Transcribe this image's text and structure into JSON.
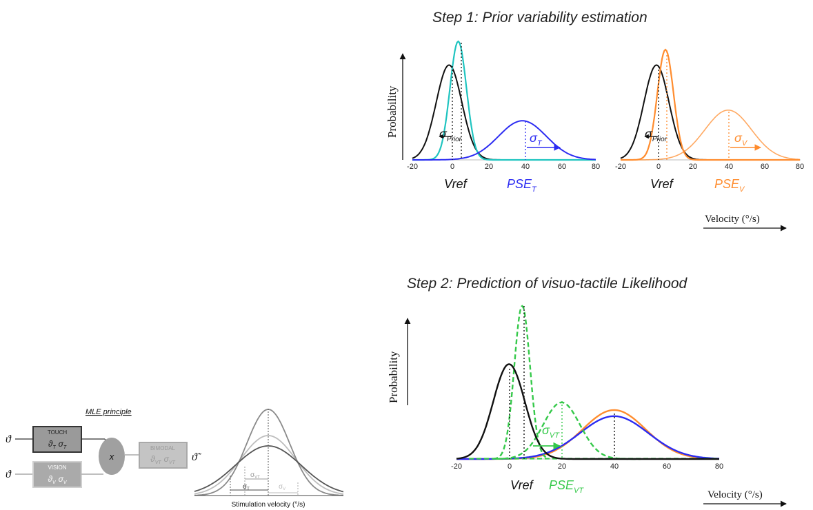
{
  "step1": {
    "title": "Step 1: Prior variability estimation",
    "ylabel": "Probability",
    "xlabel": "Velocity (°/s)",
    "ticks": [
      "-20",
      "0",
      "20",
      "40",
      "60",
      "80"
    ],
    "left_panel": {
      "vref": "Vref",
      "pse": "PSE",
      "pse_sub": "T",
      "sigma_prior": "σ",
      "sigma_prior_sub": "Prior",
      "sigma": "σ",
      "sigma_sub": "T"
    },
    "right_panel": {
      "vref": "Vref",
      "pse": "PSE",
      "pse_sub": "V",
      "sigma_prior": "σ",
      "sigma_prior_sub": "Prior",
      "sigma": "σ",
      "sigma_sub": "V"
    }
  },
  "step2": {
    "title": "Step 2: Prediction of visuo-tactile Likelihood",
    "ylabel": "Probability",
    "xlabel": "Velocity (°/s)",
    "ticks": [
      "-20",
      "0",
      "20",
      "40",
      "60",
      "80"
    ],
    "vref": "Vref",
    "pse": "PSE",
    "pse_sub": "VT",
    "sigma": "σ",
    "sigma_sub": "VT"
  },
  "mle": {
    "title": "MLE principle",
    "input_symbol": "ϑ",
    "touch": {
      "label": "TOUCH",
      "theta": "ϑ",
      "theta_sub": "T",
      "sigma": "σ",
      "sigma_sub": "T"
    },
    "vision": {
      "label": "VISION",
      "theta": "ϑ",
      "theta_sub": "V",
      "sigma": "σ",
      "sigma_sub": "V"
    },
    "multiply": "x",
    "bimodal": {
      "label": "BIMODAL",
      "theta": "ϑ",
      "theta_sub": "VT",
      "sigma": "σ",
      "sigma_sub": "VT"
    },
    "output_symbol": "ϑ̃",
    "xlabel": "Stimulation velocity (°/s)",
    "sigma_vt": "σ",
    "sigma_vt_sub": "VT",
    "sigma_t": "σ",
    "sigma_t_sub": "T",
    "sigma_v": "σ",
    "sigma_v_sub": "V"
  },
  "colors": {
    "black": "#111111",
    "cyan": "#1fc4c0",
    "blue": "#2b2bf2",
    "orange": "#ff8c2e",
    "green": "#35c94a",
    "gray_dark": "#555555",
    "gray_mid": "#8a8a8a",
    "gray_light": "#bdbdbd"
  },
  "chart_data": [
    {
      "type": "line",
      "xlim": [
        -20,
        80
      ],
      "x_ticks": [
        -20,
        0,
        20,
        40,
        60,
        80
      ],
      "series": [
        {
          "color": "black",
          "mean": 0,
          "sd": 7,
          "peak": 0.8
        },
        {
          "color": "cyan",
          "mean": 5,
          "sd": 4.5,
          "peak": 1.0
        },
        {
          "color": "blue",
          "mean": 40,
          "sd": 13,
          "peak": 0.33
        }
      ]
    },
    {
      "type": "line",
      "xlim": [
        -20,
        80
      ],
      "x_ticks": [
        -20,
        0,
        20,
        40,
        60,
        80
      ],
      "series": [
        {
          "color": "black",
          "mean": 0,
          "sd": 7,
          "peak": 0.8
        },
        {
          "color": "orange",
          "mean": 5,
          "sd": 4.5,
          "peak": 0.93
        },
        {
          "color": "orange",
          "mean": 40,
          "sd": 13,
          "peak": 0.42
        }
      ]
    },
    {
      "type": "line",
      "xlim": [
        -20,
        80
      ],
      "x_ticks": [
        -20,
        0,
        20,
        40,
        60,
        80
      ],
      "series": [
        {
          "color": "black",
          "mean": 0,
          "sd": 6,
          "peak": 0.62
        },
        {
          "color": "green",
          "mean": 5,
          "sd": 3,
          "peak": 1.0,
          "dashed": true
        },
        {
          "color": "green",
          "mean": 20,
          "sd": 7,
          "peak": 0.37,
          "dashed": true
        },
        {
          "color": "orange",
          "mean": 40,
          "sd": 12,
          "peak": 0.32
        },
        {
          "color": "blue",
          "mean": 40,
          "sd": 13,
          "peak": 0.28
        }
      ]
    }
  ]
}
